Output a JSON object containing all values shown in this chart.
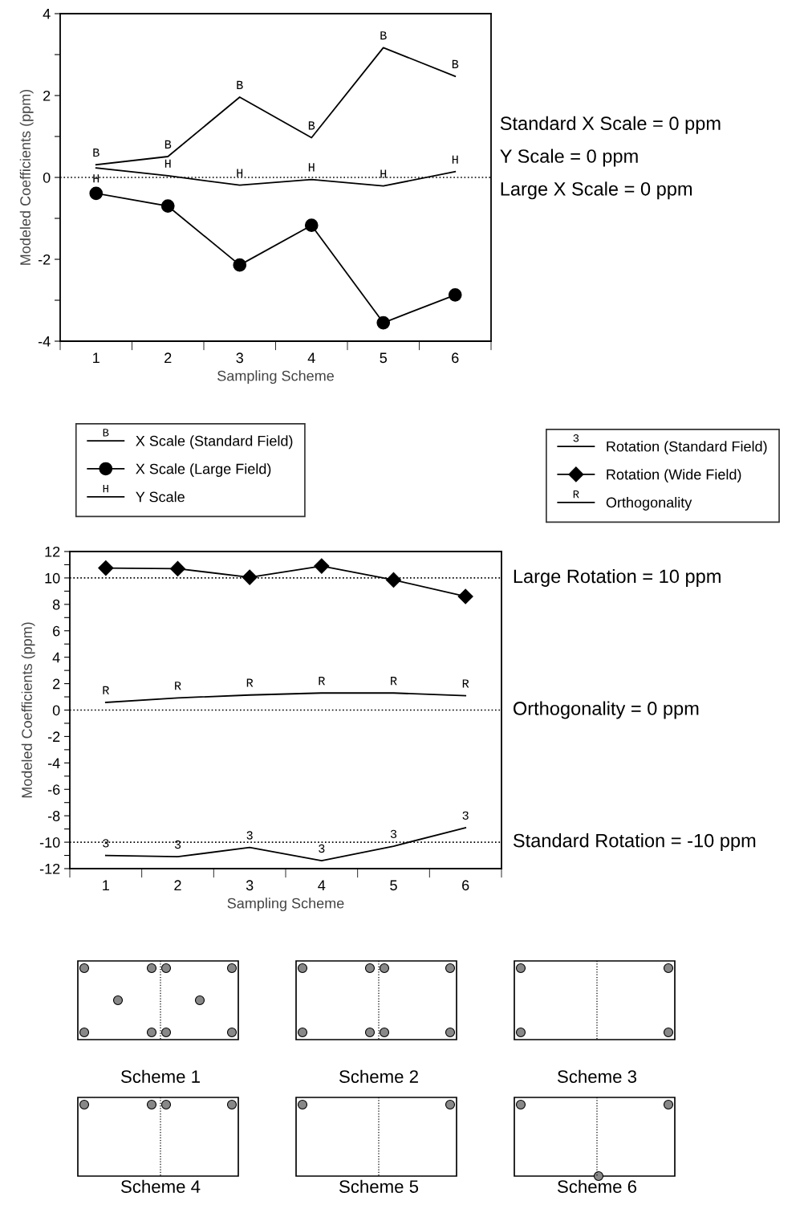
{
  "chart_data": [
    {
      "type": "line",
      "xlabel": "Sampling Scheme",
      "ylabel": "Modeled Coefficients (ppm)",
      "categories": [
        "1",
        "2",
        "3",
        "4",
        "5",
        "6"
      ],
      "ylim": [
        -4,
        4
      ],
      "yticks": [
        -4,
        {
          "value": -3,
          "label": null
        },
        -2,
        {
          "value": -1,
          "label": null
        },
        0,
        {
          "value": 1,
          "label": null
        },
        2,
        {
          "value": 3,
          "label": null
        },
        4
      ],
      "grid": false,
      "legend": "bottom",
      "line_style": "solid",
      "series": [
        {
          "name": "X Scale (Standard Field)",
          "color": "#000000",
          "marker": "none",
          "values": [
            0.31,
            0.51,
            1.96,
            0.97,
            3.17,
            2.47
          ],
          "value_labels": [
            "B",
            "B",
            "B",
            "B",
            "B",
            "B"
          ]
        },
        {
          "name": "X Scale (Large Field)",
          "color": "#000000",
          "marker": "circle",
          "values": [
            -0.39,
            -0.7,
            -2.14,
            -1.17,
            -3.55,
            -2.87
          ]
        },
        {
          "name": "Y Scale",
          "color": "#000000",
          "marker": "none",
          "values": [
            0.23,
            0.04,
            -0.19,
            -0.05,
            -0.21,
            0.14
          ],
          "value_labels": [
            "H",
            "H",
            "H",
            "H",
            "H",
            "H"
          ]
        }
      ],
      "ref_lines": [
        {
          "axis": "y",
          "value": 0,
          "line_style": "dotted",
          "color": "#000000"
        }
      ],
      "annotations": [
        "Standard X Scale = 0 ppm",
        "Y Scale = 0 ppm",
        "Large X Scale = 0 ppm"
      ]
    },
    {
      "type": "line",
      "xlabel": "Sampling Scheme",
      "ylabel": "Modeled Coefficients (ppm)",
      "categories": [
        "1",
        "2",
        "3",
        "4",
        "5",
        "6"
      ],
      "ylim": [
        -12,
        12
      ],
      "yticks": [
        -12,
        {
          "value": -11,
          "label": null
        },
        -10,
        {
          "value": -9,
          "label": null
        },
        -8,
        {
          "value": -7,
          "label": null
        },
        -6,
        {
          "value": -5,
          "label": null
        },
        -4,
        {
          "value": -3,
          "label": null
        },
        -2,
        {
          "value": -1,
          "label": null
        },
        0,
        {
          "value": 1,
          "label": null
        },
        2,
        {
          "value": 3,
          "label": null
        },
        4,
        {
          "value": 5,
          "label": null
        },
        6,
        {
          "value": 7,
          "label": null
        },
        8,
        {
          "value": 9,
          "label": null
        },
        10,
        {
          "value": 11,
          "label": null
        },
        12
      ],
      "grid": false,
      "legend": "top",
      "line_style": "solid",
      "series": [
        {
          "name": "Rotation (Standard Field)",
          "color": "#000000",
          "marker": "none",
          "values": [
            -11.0,
            -11.1,
            -10.4,
            -11.4,
            -10.3,
            -8.9
          ]
        },
        {
          "name": "Rotation (Wide Field)",
          "color": "#000000",
          "marker": "diamond",
          "values": [
            10.75,
            10.7,
            10.05,
            10.9,
            9.85,
            8.6
          ]
        },
        {
          "name": "Orthogonality",
          "color": "#000000",
          "marker": "none",
          "values": [
            0.58,
            0.92,
            1.14,
            1.29,
            1.29,
            1.09
          ],
          "value_labels": [
            "R",
            "R",
            "R",
            "R",
            "R",
            "R"
          ]
        }
      ],
      "ref_lines": [
        {
          "axis": "y",
          "value": 10,
          "label": "Large Rotation = 10 ppm",
          "line_style": "dotted",
          "color": "#000000"
        },
        {
          "axis": "y",
          "value": 0,
          "label": "Orthogonality = 0 ppm",
          "line_style": "dotted",
          "color": "#000000"
        },
        {
          "axis": "y",
          "value": -10,
          "label": "Standard Rotation = -10 ppm",
          "line_style": "dotted",
          "color": "#000000"
        }
      ],
      "annotations": [
        {
          "text": "3",
          "x": "1",
          "y": -11.0
        },
        {
          "text": "3",
          "x": "2",
          "y": -11.1
        },
        {
          "text": "3",
          "x": "3",
          "y": -10.4
        },
        {
          "text": "3",
          "x": "4",
          "y": -11.4
        },
        {
          "text": "3",
          "x": "5",
          "y": -10.3
        },
        {
          "text": "3",
          "x": "6",
          "y": -8.9
        }
      ]
    },
    {
      "type": "other",
      "annotations": [
        "Scheme 1",
        "Scheme 2",
        "Scheme 3",
        "Scheme 4",
        "Scheme 5",
        "Scheme 6"
      ]
    }
  ]
}
